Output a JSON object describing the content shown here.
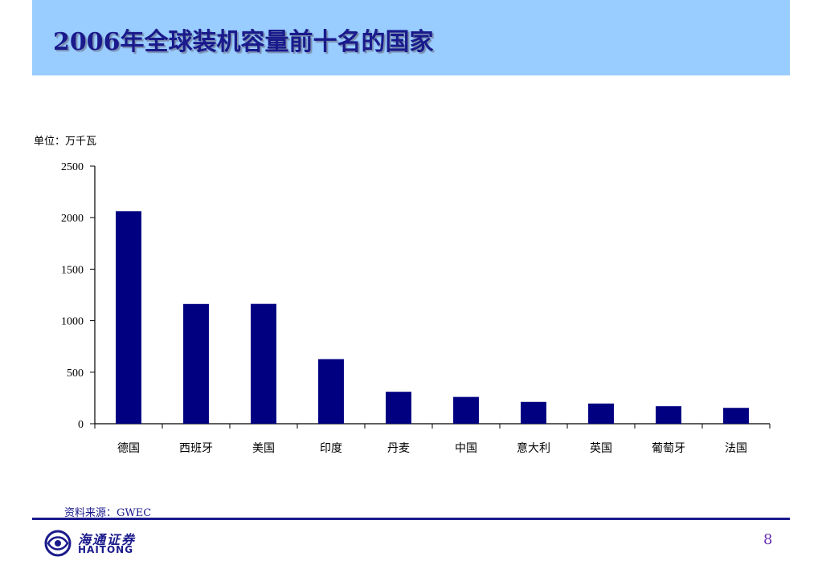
{
  "slide": {
    "title": "2006年全球装机容量前十名的国家",
    "unit_label": "单位：万千瓦",
    "source_label": "资料来源：",
    "source_value": "GWEC",
    "page_number": "8",
    "logo": {
      "cn": "海通证券",
      "en": "HAITONG"
    }
  },
  "colors": {
    "header_bg": "#99ccff",
    "bar": "#000080",
    "title": "#1a1a8c",
    "rule": "#1a1a8c"
  },
  "chart_data": {
    "type": "bar",
    "categories": [
      "德国",
      "西班牙",
      "美国",
      "印度",
      "丹麦",
      "中国",
      "意大利",
      "英国",
      "葡萄牙",
      "法国"
    ],
    "values": [
      2062,
      1162,
      1163,
      627,
      310,
      260,
      212,
      196,
      170,
      154
    ],
    "ylim": [
      0,
      2500
    ],
    "yticks": [
      0,
      500,
      1000,
      1500,
      2000,
      2500
    ],
    "grid": false,
    "legend": "none"
  }
}
